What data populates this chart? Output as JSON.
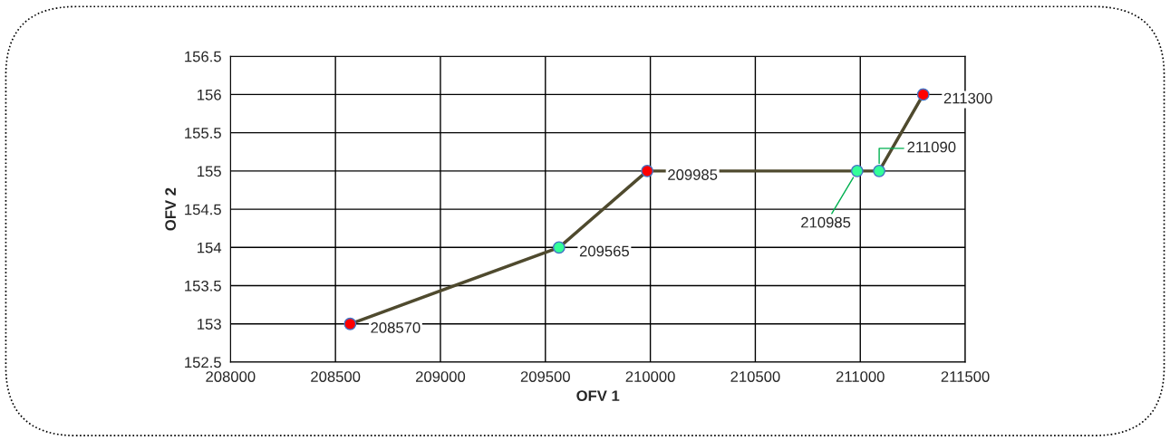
{
  "chart_data": {
    "type": "line",
    "xlabel": "OFV 1",
    "ylabel": "OFV 2",
    "x": [
      208570,
      209565,
      209985,
      210985,
      211090,
      211300
    ],
    "series": [
      {
        "color": "#4f4a2e",
        "colors": [
          "#ff0000",
          "#33ff99",
          "#ff0000",
          "#33ff99",
          "#33ff99",
          "#ff0000"
        ],
        "values": [
          153,
          154,
          155,
          155,
          155,
          156
        ]
      }
    ],
    "annotations": [
      {
        "text": "208570",
        "x": 208570,
        "y": 153
      },
      {
        "text": "209565",
        "x": 209565,
        "y": 154
      },
      {
        "text": "209985",
        "x": 209985,
        "y": 155
      },
      {
        "text": "210985",
        "x": 210985,
        "y": 155
      },
      {
        "text": "211090",
        "x": 211090,
        "y": 155
      },
      {
        "text": "211300",
        "x": 211300,
        "y": 156
      }
    ],
    "xlim": [
      208000,
      211500
    ],
    "xticks": [
      208000,
      208500,
      209000,
      209500,
      210000,
      210500,
      211000,
      211500
    ],
    "ylim": [
      152.5,
      156.5
    ],
    "yticks": [
      152.5,
      153,
      153.5,
      154,
      154.5,
      155,
      155.5,
      156,
      156.5
    ],
    "grid": true,
    "marker": "circle",
    "line_style": "solid",
    "legend": false
  }
}
